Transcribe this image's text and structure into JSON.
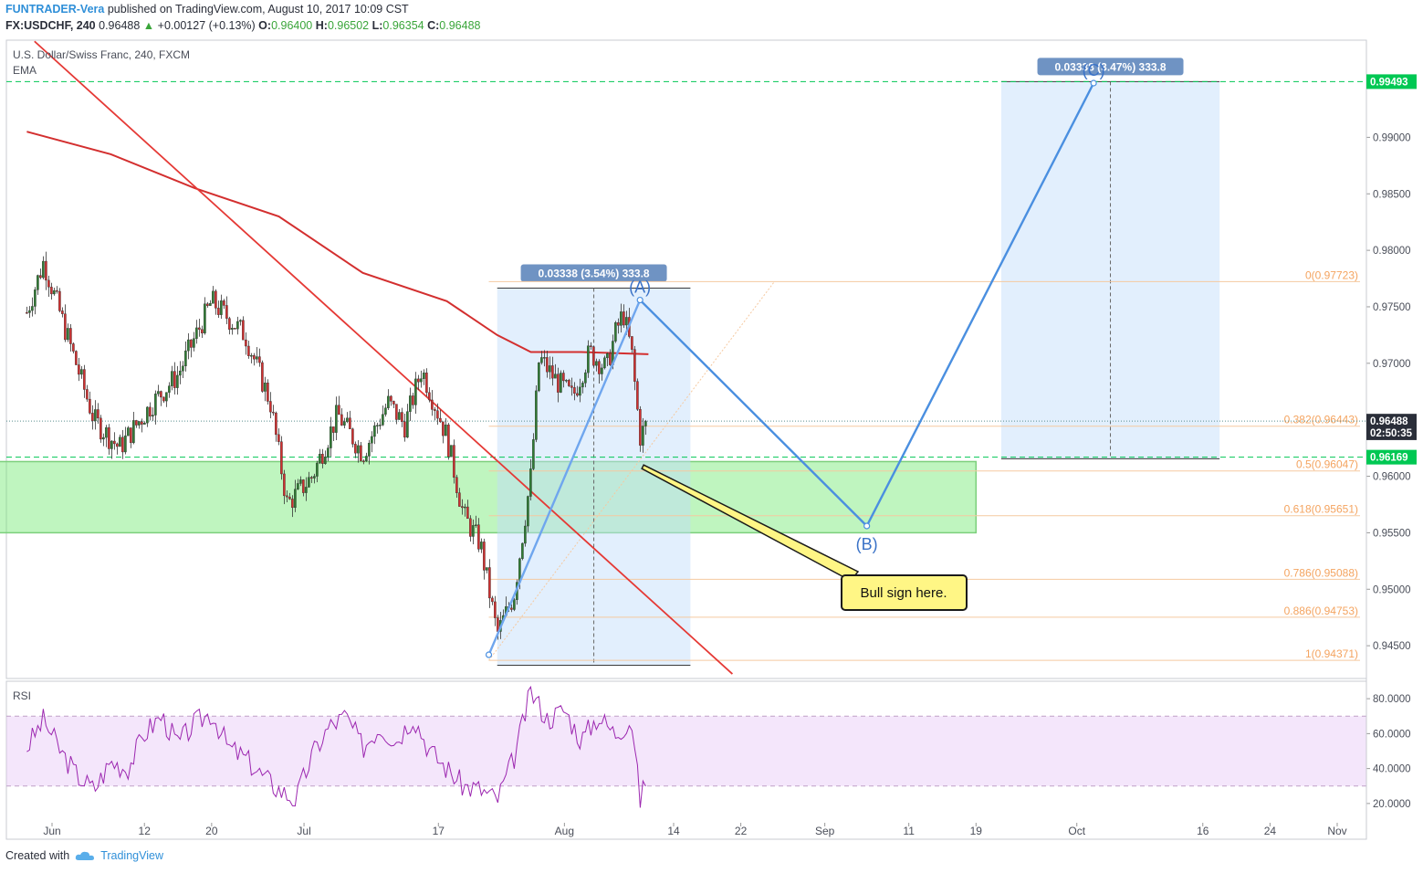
{
  "header": {
    "author": "FUNTRADER-Vera",
    "published_text": "published on TradingView.com, August 10, 2017 10:09 CST",
    "symbol": "FX:USDCHF, 240",
    "last": "0.96488",
    "change_arrow": "▲",
    "change": "+0.00127 (+0.13%)",
    "ohlc": {
      "o_label": "O:",
      "o": "0.96400",
      "h_label": "H:",
      "h": "0.96502",
      "l_label": "L:",
      "l": "0.96354",
      "c_label": "C:",
      "c": "0.96488"
    }
  },
  "legend": {
    "instrument": "U.S. Dollar/Swiss Franc, 240, FXCM",
    "ema_label": "EMA",
    "rsi_label": "RSI"
  },
  "footer": {
    "created_with": "Created with",
    "brand": "TradingView"
  },
  "colors": {
    "up": "#2e7d32",
    "down": "#d32f2f",
    "ema": "#d32f2f",
    "rsi": "#9c27b0",
    "wave": "#4a8fe0",
    "fib": "#f4a460",
    "green_level": "#00c853"
  },
  "chart_data": {
    "type": "candlestick",
    "price_axis": {
      "min": 0.9421,
      "max": 0.9986,
      "ticks": [
        0.945,
        0.95,
        0.955,
        0.96,
        0.965,
        0.97,
        0.975,
        0.98,
        0.985,
        0.99
      ],
      "tick_labels": [
        "0.94500",
        "0.95000",
        "0.95500",
        "0.96000",
        "0.96500",
        "0.97000",
        "0.97500",
        "0.98000",
        "0.98500",
        "0.99000"
      ]
    },
    "time_axis": {
      "ticks": [
        {
          "date": "2017-06-01",
          "label": "Jun"
        },
        {
          "date": "2017-06-12",
          "label": "12"
        },
        {
          "date": "2017-06-20",
          "label": "20"
        },
        {
          "date": "2017-07-01",
          "label": "Jul"
        },
        {
          "date": "2017-07-17",
          "label": "17"
        },
        {
          "date": "2017-08-01",
          "label": "Aug"
        },
        {
          "date": "2017-08-14",
          "label": "14"
        },
        {
          "date": "2017-08-22",
          "label": "22"
        },
        {
          "date": "2017-09-01",
          "label": "Sep"
        },
        {
          "date": "2017-09-11",
          "label": "11"
        },
        {
          "date": "2017-09-19",
          "label": "19"
        },
        {
          "date": "2017-10-01",
          "label": "Oct"
        },
        {
          "date": "2017-10-16",
          "label": "16"
        },
        {
          "date": "2017-10-24",
          "label": "24"
        },
        {
          "date": "2017-11-01",
          "label": "Nov"
        }
      ]
    },
    "price_path": [
      {
        "t": "2017-05-29",
        "p": 0.9745
      },
      {
        "t": "2017-05-31",
        "p": 0.979
      },
      {
        "t": "2017-06-03",
        "p": 0.972
      },
      {
        "t": "2017-06-06",
        "p": 0.965
      },
      {
        "t": "2017-06-09",
        "p": 0.9625
      },
      {
        "t": "2017-06-13",
        "p": 0.9665
      },
      {
        "t": "2017-06-16",
        "p": 0.969
      },
      {
        "t": "2017-06-20",
        "p": 0.9755
      },
      {
        "t": "2017-06-24",
        "p": 0.9725
      },
      {
        "t": "2017-06-27",
        "p": 0.9665
      },
      {
        "t": "2017-06-29",
        "p": 0.9575
      },
      {
        "t": "2017-07-02",
        "p": 0.96
      },
      {
        "t": "2017-07-05",
        "p": 0.9655
      },
      {
        "t": "2017-07-08",
        "p": 0.962
      },
      {
        "t": "2017-07-11",
        "p": 0.9665
      },
      {
        "t": "2017-07-13",
        "p": 0.9645
      },
      {
        "t": "2017-07-15",
        "p": 0.9695
      },
      {
        "t": "2017-07-18",
        "p": 0.9635
      },
      {
        "t": "2017-07-20",
        "p": 0.9565
      },
      {
        "t": "2017-07-22",
        "p": 0.954
      },
      {
        "t": "2017-07-24",
        "p": 0.946
      },
      {
        "t": "2017-07-26",
        "p": 0.9495
      },
      {
        "t": "2017-07-28",
        "p": 0.96
      },
      {
        "t": "2017-07-29",
        "p": 0.9705
      },
      {
        "t": "2017-07-31",
        "p": 0.9685
      },
      {
        "t": "2017-08-02",
        "p": 0.967
      },
      {
        "t": "2017-08-04",
        "p": 0.971
      },
      {
        "t": "2017-08-06",
        "p": 0.9695
      },
      {
        "t": "2017-08-07",
        "p": 0.9725
      },
      {
        "t": "2017-08-08",
        "p": 0.9745
      },
      {
        "t": "2017-08-09",
        "p": 0.971
      },
      {
        "t": "2017-08-10",
        "p": 0.9635
      },
      {
        "t": "2017-08-11",
        "p": 0.9649
      }
    ],
    "ema_path": [
      {
        "t": "2017-05-29",
        "p": 0.9905
      },
      {
        "t": "2017-06-08",
        "p": 0.9885
      },
      {
        "t": "2017-06-18",
        "p": 0.9855
      },
      {
        "t": "2017-06-28",
        "p": 0.983
      },
      {
        "t": "2017-07-08",
        "p": 0.978
      },
      {
        "t": "2017-07-18",
        "p": 0.9755
      },
      {
        "t": "2017-07-24",
        "p": 0.9725
      },
      {
        "t": "2017-07-28",
        "p": 0.971
      },
      {
        "t": "2017-08-03",
        "p": 0.971
      },
      {
        "t": "2017-08-11",
        "p": 0.9708
      }
    ],
    "trendline": {
      "from": {
        "t": "2017-05-31",
        "p": 0.9985
      },
      "to": {
        "t": "2017-08-21",
        "p": 0.9425
      }
    },
    "zone": {
      "from": "2017-05-29",
      "to": "2017-09-19",
      "top": 0.9613,
      "bottom": 0.955
    },
    "projection_boxes": [
      {
        "from": "2017-07-24",
        "to": "2017-08-16",
        "top": 0.97665,
        "bottom": 0.94327,
        "label": "0.03338 (3.54%) 333.8"
      },
      {
        "from": "2017-09-22",
        "to": "2017-10-18",
        "top": 0.99493,
        "bottom": 0.96155,
        "label": "0.03338 (3.47%) 333.8"
      }
    ],
    "waves": [
      {
        "t": "2017-07-23",
        "p": 0.9442,
        "label": ""
      },
      {
        "t": "2017-08-10",
        "p": 0.9756,
        "label": "(A)"
      },
      {
        "t": "2017-09-06",
        "p": 0.9556,
        "label": "(B)"
      },
      {
        "t": "2017-10-03",
        "p": 0.9948,
        "label": "(C)"
      }
    ],
    "fib_levels": [
      {
        "label": "0(0.97723)",
        "p": 0.97723
      },
      {
        "label": "0.382(0.96443)",
        "p": 0.96443
      },
      {
        "label": "0.5(0.96047)",
        "p": 0.96047
      },
      {
        "label": "0.618(0.95651)",
        "p": 0.95651
      },
      {
        "label": "0.786(0.95088)",
        "p": 0.95088
      },
      {
        "label": "0.886(0.94753)",
        "p": 0.94753
      },
      {
        "label": "1(0.94371)",
        "p": 0.94371
      }
    ],
    "horizontal_levels": [
      0.99493,
      0.96169
    ],
    "price_tags": [
      {
        "value": "0.99493",
        "p": 0.99493,
        "color": "#00c853"
      },
      {
        "value": "0.96488",
        "p": 0.96488,
        "color": "#2a2e39"
      },
      {
        "value": "02:50:35",
        "p": 0.96385,
        "color": "#2a2e39"
      },
      {
        "value": "0.96169",
        "p": 0.96169,
        "color": "#00c853"
      }
    ],
    "callout": {
      "text": "Bull sign here.",
      "tip": {
        "t": "2017-08-10",
        "p": 0.961
      }
    },
    "rsi": {
      "axis": {
        "min": 10,
        "max": 90,
        "ticks": [
          20,
          40,
          60,
          80
        ],
        "tick_labels": [
          "20.0000",
          "40.0000",
          "60.0000",
          "80.0000"
        ]
      },
      "band": [
        30,
        70
      ],
      "path": [
        {
          "t": "2017-05-29",
          "p": 52
        },
        {
          "t": "2017-05-31",
          "p": 68
        },
        {
          "t": "2017-06-02",
          "p": 50
        },
        {
          "t": "2017-06-04",
          "p": 36
        },
        {
          "t": "2017-06-06",
          "p": 28
        },
        {
          "t": "2017-06-08",
          "p": 44
        },
        {
          "t": "2017-06-10",
          "p": 40
        },
        {
          "t": "2017-06-12",
          "p": 60
        },
        {
          "t": "2017-06-14",
          "p": 70
        },
        {
          "t": "2017-06-16",
          "p": 54
        },
        {
          "t": "2017-06-18",
          "p": 66
        },
        {
          "t": "2017-06-20",
          "p": 72
        },
        {
          "t": "2017-06-22",
          "p": 52
        },
        {
          "t": "2017-06-24",
          "p": 46
        },
        {
          "t": "2017-06-26",
          "p": 36
        },
        {
          "t": "2017-06-28",
          "p": 28
        },
        {
          "t": "2017-06-30",
          "p": 22
        },
        {
          "t": "2017-07-02",
          "p": 48
        },
        {
          "t": "2017-07-04",
          "p": 64
        },
        {
          "t": "2017-07-06",
          "p": 70
        },
        {
          "t": "2017-07-08",
          "p": 52
        },
        {
          "t": "2017-07-10",
          "p": 64
        },
        {
          "t": "2017-07-12",
          "p": 56
        },
        {
          "t": "2017-07-14",
          "p": 70
        },
        {
          "t": "2017-07-16",
          "p": 50
        },
        {
          "t": "2017-07-18",
          "p": 40
        },
        {
          "t": "2017-07-20",
          "p": 30
        },
        {
          "t": "2017-07-22",
          "p": 28
        },
        {
          "t": "2017-07-24",
          "p": 22
        },
        {
          "t": "2017-07-26",
          "p": 46
        },
        {
          "t": "2017-07-28",
          "p": 84
        },
        {
          "t": "2017-07-30",
          "p": 68
        },
        {
          "t": "2017-08-01",
          "p": 74
        },
        {
          "t": "2017-08-03",
          "p": 56
        },
        {
          "t": "2017-08-05",
          "p": 70
        },
        {
          "t": "2017-08-07",
          "p": 60
        },
        {
          "t": "2017-08-09",
          "p": 68
        },
        {
          "t": "2017-08-10",
          "p": 22
        },
        {
          "t": "2017-08-11",
          "p": 38
        }
      ]
    }
  }
}
